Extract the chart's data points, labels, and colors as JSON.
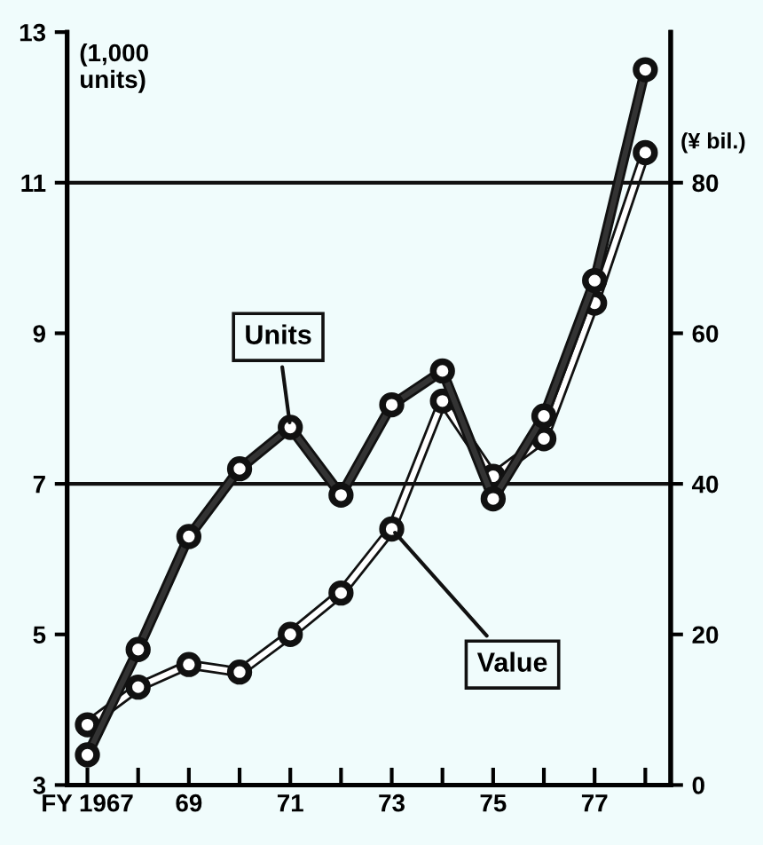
{
  "chart_data": {
    "type": "line",
    "x": [
      1967,
      1968,
      1969,
      1970,
      1971,
      1972,
      1973,
      1974,
      1975,
      1976,
      1977,
      1978
    ],
    "series": [
      {
        "name": "Units",
        "color": "#333333",
        "values": [
          3.4,
          4.8,
          6.3,
          7.2,
          7.75,
          6.85,
          8.05,
          8.5,
          6.8,
          7.9,
          9.7,
          12.5
        ]
      },
      {
        "name": "Value",
        "color": "#ffffff",
        "axis": "y2",
        "values": [
          8,
          13,
          16,
          15,
          20,
          25.5,
          34,
          51,
          41,
          46,
          64,
          84
        ]
      }
    ],
    "ylabel": "(1,000\nunits)",
    "y2label": "(¥ bil.)",
    "xlim": [
      1966.6,
      1978.5
    ],
    "xticks": [
      {
        "value": 1967,
        "label": "FY 1967"
      },
      {
        "value": 1968,
        "label": null
      },
      {
        "value": 1969,
        "label": "69"
      },
      {
        "value": 1970,
        "label": null
      },
      {
        "value": 1971,
        "label": "71"
      },
      {
        "value": 1972,
        "label": null
      },
      {
        "value": 1973,
        "label": "73"
      },
      {
        "value": 1974,
        "label": null
      },
      {
        "value": 1975,
        "label": "75"
      },
      {
        "value": 1976,
        "label": null
      },
      {
        "value": 1977,
        "label": "77"
      },
      {
        "value": 1978,
        "label": null
      }
    ],
    "ylim": [
      3,
      13
    ],
    "yticks": [
      3,
      5,
      7,
      9,
      11,
      13
    ],
    "y2lim": [
      0,
      100
    ],
    "y2ticks": [
      0,
      20,
      40,
      60,
      80
    ],
    "ref_lines": [
      {
        "axis": "y",
        "value": 7,
        "label": null
      },
      {
        "axis": "y",
        "value": 11,
        "label": null
      }
    ],
    "marker": "circle",
    "line_style": "solid",
    "legend": false,
    "grid": false
  }
}
